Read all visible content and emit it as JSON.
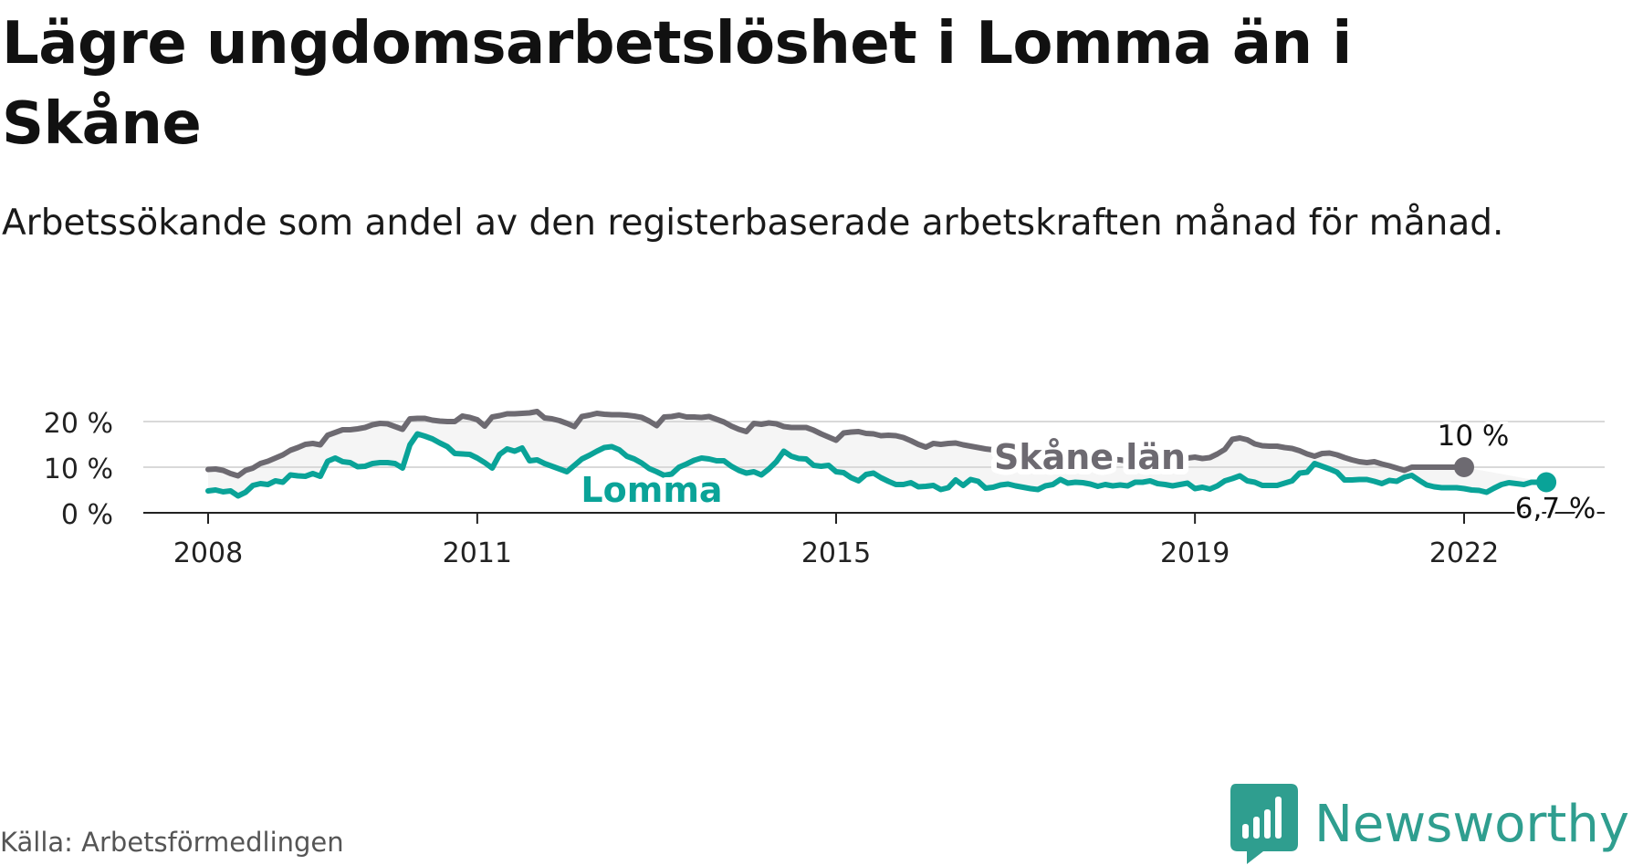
{
  "title": "Lägre ungdomsarbetslöshet i Lomma än i Skåne",
  "subtitle": "Arbetssökande som andel av den registerbaserade arbetskraften månad för månad.",
  "source": "Källa: Arbetsförmedlingen",
  "brand": {
    "name": "Newsworthy",
    "icon": "newsworthy-logo-icon"
  },
  "colors": {
    "skane": "#6d6a71",
    "lomma": "#0aa398",
    "band": "#f5f5f5",
    "grid": "#d9d9d9",
    "axis": "#222222",
    "brand": "#2f9e8f"
  },
  "chart_data": {
    "type": "line",
    "x_range": [
      2008.0,
      2022.75
    ],
    "ylim": [
      0,
      22
    ],
    "y_ticks": [
      0,
      10,
      20
    ],
    "y_tick_labels": [
      "0 %",
      "10 %",
      "20 %"
    ],
    "x_ticks": [
      2008,
      2011,
      2015,
      2019,
      2022
    ],
    "x_tick_labels": [
      "2008",
      "2011",
      "2015",
      "2019",
      "2022"
    ],
    "series": [
      {
        "name": "Skåne län",
        "start": 2008.0,
        "step": 0.0833333,
        "end_label": "10 %",
        "values": [
          9.5,
          9.6,
          9.3,
          8.6,
          8.1,
          9.3,
          9.8,
          10.8,
          11.3,
          12.0,
          12.7,
          13.7,
          14.3,
          15.0,
          15.2,
          14.9,
          17.0,
          17.6,
          18.2,
          18.2,
          18.4,
          18.7,
          19.3,
          19.6,
          19.5,
          18.9,
          18.3,
          20.6,
          20.7,
          20.7,
          20.3,
          20.1,
          20.0,
          20.0,
          21.2,
          20.9,
          20.4,
          19.0,
          21.0,
          21.3,
          21.7,
          21.7,
          21.8,
          21.9,
          22.2,
          20.8,
          20.6,
          20.2,
          19.6,
          18.9,
          21.1,
          21.4,
          21.8,
          21.6,
          21.5,
          21.5,
          21.4,
          21.2,
          20.9,
          20.1,
          19.1,
          21.0,
          21.1,
          21.4,
          21.0,
          21.0,
          20.9,
          21.1,
          20.5,
          19.9,
          19.0,
          18.3,
          17.8,
          19.6,
          19.4,
          19.7,
          19.5,
          18.9,
          18.7,
          18.7,
          18.7,
          18.1,
          17.3,
          16.6,
          15.9,
          17.5,
          17.7,
          17.8,
          17.4,
          17.3,
          16.9,
          17.0,
          16.9,
          16.5,
          15.8,
          15.0,
          14.4,
          15.2,
          15.0,
          15.2,
          15.3,
          14.9,
          14.6,
          14.3,
          14.0,
          13.8,
          13.6,
          13.5,
          13.3,
          13.2,
          13.0,
          12.8,
          12.4,
          12.0,
          11.4,
          12.1,
          12.2,
          11.8,
          11.7,
          11.6,
          11.8,
          11.7,
          11.6,
          11.3,
          10.6,
          10.2,
          11.5,
          11.8,
          12.3,
          12.2,
          12.2,
          12.0,
          12.2,
          11.9,
          12.1,
          12.9,
          13.9,
          16.1,
          16.4,
          16.0,
          15.1,
          14.7,
          14.6,
          14.6,
          14.3,
          14.1,
          13.6,
          12.9,
          12.4,
          13.0,
          13.1,
          12.7,
          12.1,
          11.6,
          11.2,
          11.0,
          11.2,
          10.7,
          10.3,
          9.8,
          9.3,
          10.0,
          10.0,
          10.0,
          10.0,
          10.0,
          10.0,
          10.0,
          10.0
        ]
      },
      {
        "name": "Lomma",
        "start": 2008.0,
        "step": 0.0833333,
        "end_label": "6,7 %",
        "values": [
          4.8,
          5.0,
          4.6,
          4.8,
          3.7,
          4.5,
          6.0,
          6.4,
          6.2,
          7.0,
          6.7,
          8.3,
          8.1,
          8.0,
          8.6,
          8.0,
          11.3,
          12.0,
          11.2,
          11.0,
          10.1,
          10.2,
          10.8,
          11.0,
          11.0,
          10.8,
          9.8,
          14.9,
          17.3,
          16.8,
          16.2,
          15.3,
          14.5,
          13.0,
          12.9,
          12.8,
          12.0,
          11.0,
          9.8,
          12.8,
          14.0,
          13.5,
          14.2,
          11.4,
          11.6,
          10.8,
          10.2,
          9.6,
          9.0,
          10.4,
          11.8,
          12.6,
          13.5,
          14.3,
          14.5,
          13.8,
          12.4,
          11.8,
          10.9,
          9.7,
          9.0,
          8.2,
          8.5,
          10.0,
          10.7,
          11.5,
          12.0,
          11.8,
          11.4,
          11.4,
          10.2,
          9.3,
          8.7,
          9.0,
          8.3,
          9.6,
          11.2,
          13.5,
          12.4,
          11.9,
          11.8,
          10.4,
          10.2,
          10.4,
          9.0,
          8.8,
          7.7,
          7.0,
          8.4,
          8.7,
          7.7,
          6.9,
          6.2,
          6.2,
          6.6,
          5.7,
          5.8,
          6.0,
          5.1,
          5.5,
          7.2,
          6.0,
          7.3,
          6.9,
          5.4,
          5.6,
          6.1,
          6.3,
          5.9,
          5.6,
          5.3,
          5.1,
          5.9,
          6.2,
          7.3,
          6.5,
          6.7,
          6.6,
          6.3,
          5.8,
          6.2,
          5.9,
          6.1,
          5.9,
          6.7,
          6.7,
          7.0,
          6.4,
          6.2,
          5.9,
          6.2,
          6.5,
          5.3,
          5.6,
          5.2,
          5.9,
          7.0,
          7.5,
          8.1,
          7.0,
          6.7,
          6.0,
          6.0,
          6.0,
          6.5,
          7.0,
          8.7,
          8.9,
          10.8,
          10.2,
          9.6,
          8.9,
          7.2,
          7.2,
          7.3,
          7.3,
          6.9,
          6.4,
          7.1,
          6.9,
          7.8,
          8.2,
          7.1,
          6.1,
          5.7,
          5.5,
          5.5,
          5.5,
          5.3,
          5.0,
          4.9,
          4.5,
          5.4,
          6.2,
          6.6,
          6.4,
          6.2,
          6.7,
          6.7,
          6.7
        ]
      }
    ]
  }
}
